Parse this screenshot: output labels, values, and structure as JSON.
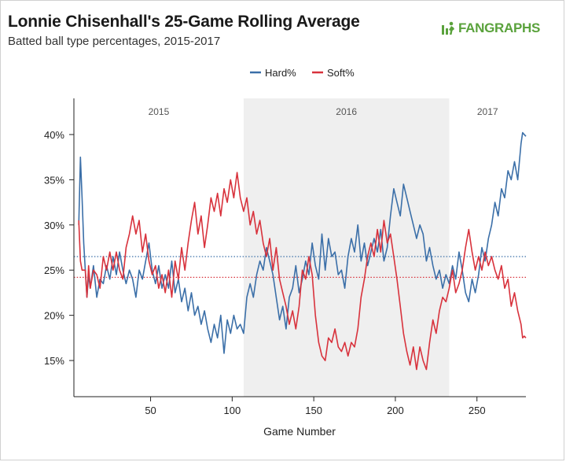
{
  "header": {
    "title": "Lonnie Chisenhall's 25-Game Rolling Average",
    "subtitle": "Batted ball type percentages, 2015-2017",
    "brand": "FANGRAPHS",
    "brand_icon": "fangraphs-logo-icon",
    "brand_color": "#5aa23c"
  },
  "chart_data": {
    "type": "line",
    "title": "Lonnie Chisenhall's 25-Game Rolling Average",
    "subtitle": "Batted ball type percentages, 2015-2017",
    "xlabel": "Game Number",
    "ylabel": "",
    "xlim": [
      3,
      280
    ],
    "ylim": [
      11,
      44
    ],
    "x_ticks": [
      50,
      100,
      150,
      200,
      250
    ],
    "x_tick_labels": [
      "50",
      "100",
      "150",
      "200",
      "250"
    ],
    "y_ticks": [
      15,
      20,
      25,
      30,
      35,
      40
    ],
    "y_tick_labels": [
      "15%",
      "20%",
      "25%",
      "30%",
      "35%",
      "40%"
    ],
    "grid": false,
    "legend_position": "top-center",
    "seasons": [
      {
        "label": "2015",
        "start": 3,
        "end": 107,
        "shaded": false
      },
      {
        "label": "2016",
        "start": 107,
        "end": 233,
        "shaded": true
      },
      {
        "label": "2017",
        "start": 233,
        "end": 280,
        "shaded": false
      }
    ],
    "reference_lines": [
      {
        "series": "Hard%",
        "value": 26.5,
        "style": "dotted"
      },
      {
        "series": "Soft%",
        "value": 24.2,
        "style": "dotted"
      }
    ],
    "series": [
      {
        "name": "Hard%",
        "color": "#3b6fa8",
        "points": [
          [
            6,
            30.0
          ],
          [
            7,
            37.5
          ],
          [
            8,
            33.0
          ],
          [
            9,
            28.0
          ],
          [
            10,
            25.0
          ],
          [
            11,
            22.0
          ],
          [
            12,
            24.5
          ],
          [
            13,
            23.0
          ],
          [
            15,
            25.5
          ],
          [
            17,
            22.0
          ],
          [
            19,
            24.0
          ],
          [
            21,
            23.5
          ],
          [
            23,
            25.5
          ],
          [
            25,
            24.0
          ],
          [
            27,
            26.5
          ],
          [
            29,
            24.5
          ],
          [
            31,
            27.0
          ],
          [
            33,
            25.0
          ],
          [
            35,
            23.5
          ],
          [
            37,
            25.0
          ],
          [
            39,
            24.0
          ],
          [
            41,
            22.0
          ],
          [
            43,
            25.0
          ],
          [
            45,
            24.0
          ],
          [
            47,
            26.0
          ],
          [
            49,
            28.0
          ],
          [
            51,
            25.0
          ],
          [
            53,
            23.5
          ],
          [
            55,
            25.5
          ],
          [
            57,
            23.0
          ],
          [
            59,
            24.5
          ],
          [
            61,
            23.0
          ],
          [
            63,
            26.0
          ],
          [
            65,
            22.5
          ],
          [
            67,
            24.0
          ],
          [
            69,
            21.5
          ],
          [
            71,
            23.0
          ],
          [
            73,
            20.5
          ],
          [
            75,
            22.5
          ],
          [
            77,
            20.0
          ],
          [
            79,
            21.0
          ],
          [
            81,
            19.0
          ],
          [
            83,
            20.5
          ],
          [
            85,
            18.5
          ],
          [
            87,
            17.0
          ],
          [
            89,
            19.0
          ],
          [
            91,
            17.5
          ],
          [
            93,
            20.0
          ],
          [
            95,
            15.8
          ],
          [
            97,
            19.5
          ],
          [
            99,
            18.0
          ],
          [
            101,
            20.0
          ],
          [
            103,
            18.5
          ],
          [
            105,
            19.0
          ],
          [
            107,
            18.0
          ],
          [
            109,
            22.0
          ],
          [
            111,
            23.5
          ],
          [
            113,
            22.0
          ],
          [
            115,
            24.5
          ],
          [
            117,
            26.0
          ],
          [
            119,
            25.0
          ],
          [
            121,
            27.5
          ],
          [
            123,
            26.0
          ],
          [
            125,
            24.5
          ],
          [
            127,
            22.0
          ],
          [
            129,
            19.5
          ],
          [
            131,
            21.0
          ],
          [
            133,
            18.5
          ],
          [
            135,
            22.0
          ],
          [
            137,
            23.0
          ],
          [
            139,
            25.5
          ],
          [
            141,
            22.5
          ],
          [
            143,
            24.0
          ],
          [
            145,
            26.0
          ],
          [
            147,
            24.5
          ],
          [
            149,
            28.0
          ],
          [
            151,
            25.5
          ],
          [
            153,
            24.0
          ],
          [
            155,
            29.0
          ],
          [
            157,
            25.0
          ],
          [
            159,
            28.5
          ],
          [
            161,
            26.5
          ],
          [
            163,
            27.0
          ],
          [
            165,
            24.5
          ],
          [
            167,
            25.0
          ],
          [
            169,
            23.0
          ],
          [
            171,
            26.5
          ],
          [
            173,
            28.5
          ],
          [
            175,
            27.0
          ],
          [
            177,
            30.0
          ],
          [
            179,
            26.0
          ],
          [
            181,
            28.0
          ],
          [
            183,
            25.5
          ],
          [
            185,
            27.0
          ],
          [
            187,
            28.5
          ],
          [
            189,
            27.0
          ],
          [
            191,
            29.5
          ],
          [
            193,
            26.0
          ],
          [
            195,
            27.5
          ],
          [
            197,
            31.0
          ],
          [
            199,
            34.0
          ],
          [
            201,
            32.5
          ],
          [
            203,
            31.0
          ],
          [
            205,
            34.5
          ],
          [
            207,
            33.0
          ],
          [
            209,
            31.5
          ],
          [
            211,
            30.0
          ],
          [
            213,
            28.5
          ],
          [
            215,
            30.0
          ],
          [
            217,
            29.0
          ],
          [
            219,
            26.0
          ],
          [
            221,
            27.5
          ],
          [
            223,
            25.5
          ],
          [
            225,
            24.0
          ],
          [
            227,
            25.0
          ],
          [
            229,
            23.0
          ],
          [
            231,
            24.5
          ],
          [
            233,
            23.5
          ],
          [
            235,
            25.5
          ],
          [
            237,
            24.0
          ],
          [
            239,
            27.0
          ],
          [
            241,
            25.0
          ],
          [
            243,
            22.5
          ],
          [
            245,
            21.5
          ],
          [
            247,
            24.0
          ],
          [
            249,
            22.5
          ],
          [
            251,
            24.5
          ],
          [
            253,
            27.5
          ],
          [
            255,
            26.0
          ],
          [
            257,
            28.5
          ],
          [
            259,
            30.0
          ],
          [
            261,
            32.5
          ],
          [
            263,
            31.0
          ],
          [
            265,
            34.0
          ],
          [
            267,
            33.0
          ],
          [
            269,
            36.0
          ],
          [
            271,
            35.0
          ],
          [
            273,
            37.0
          ],
          [
            275,
            35.0
          ],
          [
            277,
            39.0
          ],
          [
            278,
            40.2
          ],
          [
            279,
            40.0
          ],
          [
            280,
            39.8
          ]
        ]
      },
      {
        "name": "Soft%",
        "color": "#d8323c",
        "points": [
          [
            6,
            30.5
          ],
          [
            7,
            26.0
          ],
          [
            8,
            25.0
          ],
          [
            10,
            25.0
          ],
          [
            11,
            22.0
          ],
          [
            12,
            25.5
          ],
          [
            13,
            23.0
          ],
          [
            15,
            25.0
          ],
          [
            17,
            24.5
          ],
          [
            19,
            23.0
          ],
          [
            21,
            26.5
          ],
          [
            23,
            25.0
          ],
          [
            25,
            27.0
          ],
          [
            27,
            25.0
          ],
          [
            29,
            27.0
          ],
          [
            31,
            25.0
          ],
          [
            33,
            24.0
          ],
          [
            35,
            27.5
          ],
          [
            37,
            29.0
          ],
          [
            39,
            31.0
          ],
          [
            41,
            29.0
          ],
          [
            43,
            30.5
          ],
          [
            45,
            27.0
          ],
          [
            47,
            29.0
          ],
          [
            49,
            26.0
          ],
          [
            51,
            24.5
          ],
          [
            53,
            25.5
          ],
          [
            55,
            23.0
          ],
          [
            57,
            24.5
          ],
          [
            59,
            22.5
          ],
          [
            61,
            25.0
          ],
          [
            63,
            22.0
          ],
          [
            65,
            26.0
          ],
          [
            67,
            24.0
          ],
          [
            69,
            27.5
          ],
          [
            71,
            25.0
          ],
          [
            73,
            28.0
          ],
          [
            75,
            30.5
          ],
          [
            77,
            32.5
          ],
          [
            79,
            29.0
          ],
          [
            81,
            31.0
          ],
          [
            83,
            27.5
          ],
          [
            85,
            30.0
          ],
          [
            87,
            33.0
          ],
          [
            89,
            31.5
          ],
          [
            91,
            33.5
          ],
          [
            93,
            31.0
          ],
          [
            95,
            34.0
          ],
          [
            97,
            32.5
          ],
          [
            99,
            35.0
          ],
          [
            101,
            33.0
          ],
          [
            103,
            35.8
          ],
          [
            105,
            33.0
          ],
          [
            107,
            31.5
          ],
          [
            109,
            33.0
          ],
          [
            111,
            30.0
          ],
          [
            113,
            31.5
          ],
          [
            115,
            29.0
          ],
          [
            117,
            30.5
          ],
          [
            119,
            28.0
          ],
          [
            121,
            26.5
          ],
          [
            123,
            28.5
          ],
          [
            125,
            25.0
          ],
          [
            127,
            27.5
          ],
          [
            129,
            24.0
          ],
          [
            131,
            22.5
          ],
          [
            133,
            21.0
          ],
          [
            135,
            19.0
          ],
          [
            137,
            20.5
          ],
          [
            139,
            18.5
          ],
          [
            141,
            21.0
          ],
          [
            143,
            25.0
          ],
          [
            145,
            24.0
          ],
          [
            147,
            26.5
          ],
          [
            149,
            24.5
          ],
          [
            151,
            20.0
          ],
          [
            153,
            17.0
          ],
          [
            155,
            15.5
          ],
          [
            157,
            15.0
          ],
          [
            159,
            17.5
          ],
          [
            161,
            17.0
          ],
          [
            163,
            18.5
          ],
          [
            165,
            16.5
          ],
          [
            167,
            16.0
          ],
          [
            169,
            17.0
          ],
          [
            171,
            15.5
          ],
          [
            173,
            17.0
          ],
          [
            175,
            16.5
          ],
          [
            177,
            18.5
          ],
          [
            179,
            22.0
          ],
          [
            181,
            24.0
          ],
          [
            183,
            26.5
          ],
          [
            185,
            28.0
          ],
          [
            187,
            26.5
          ],
          [
            189,
            29.5
          ],
          [
            191,
            27.0
          ],
          [
            193,
            30.5
          ],
          [
            195,
            28.0
          ],
          [
            197,
            29.0
          ],
          [
            199,
            26.5
          ],
          [
            201,
            24.0
          ],
          [
            203,
            21.0
          ],
          [
            205,
            18.0
          ],
          [
            207,
            16.0
          ],
          [
            209,
            14.5
          ],
          [
            211,
            16.5
          ],
          [
            213,
            14.0
          ],
          [
            215,
            16.5
          ],
          [
            217,
            15.0
          ],
          [
            219,
            14.0
          ],
          [
            221,
            17.0
          ],
          [
            223,
            19.5
          ],
          [
            225,
            18.0
          ],
          [
            227,
            20.5
          ],
          [
            229,
            22.0
          ],
          [
            231,
            21.5
          ],
          [
            233,
            23.0
          ],
          [
            235,
            25.0
          ],
          [
            237,
            22.5
          ],
          [
            239,
            23.5
          ],
          [
            241,
            25.0
          ],
          [
            243,
            27.5
          ],
          [
            245,
            29.5
          ],
          [
            247,
            27.0
          ],
          [
            249,
            25.0
          ],
          [
            251,
            26.5
          ],
          [
            253,
            25.0
          ],
          [
            255,
            27.0
          ],
          [
            257,
            25.5
          ],
          [
            259,
            26.5
          ],
          [
            261,
            25.0
          ],
          [
            263,
            24.0
          ],
          [
            265,
            25.5
          ],
          [
            267,
            23.0
          ],
          [
            269,
            24.0
          ],
          [
            271,
            21.0
          ],
          [
            273,
            22.5
          ],
          [
            275,
            20.5
          ],
          [
            277,
            19.0
          ],
          [
            278,
            17.5
          ],
          [
            279,
            17.7
          ],
          [
            280,
            17.5
          ]
        ]
      }
    ]
  }
}
